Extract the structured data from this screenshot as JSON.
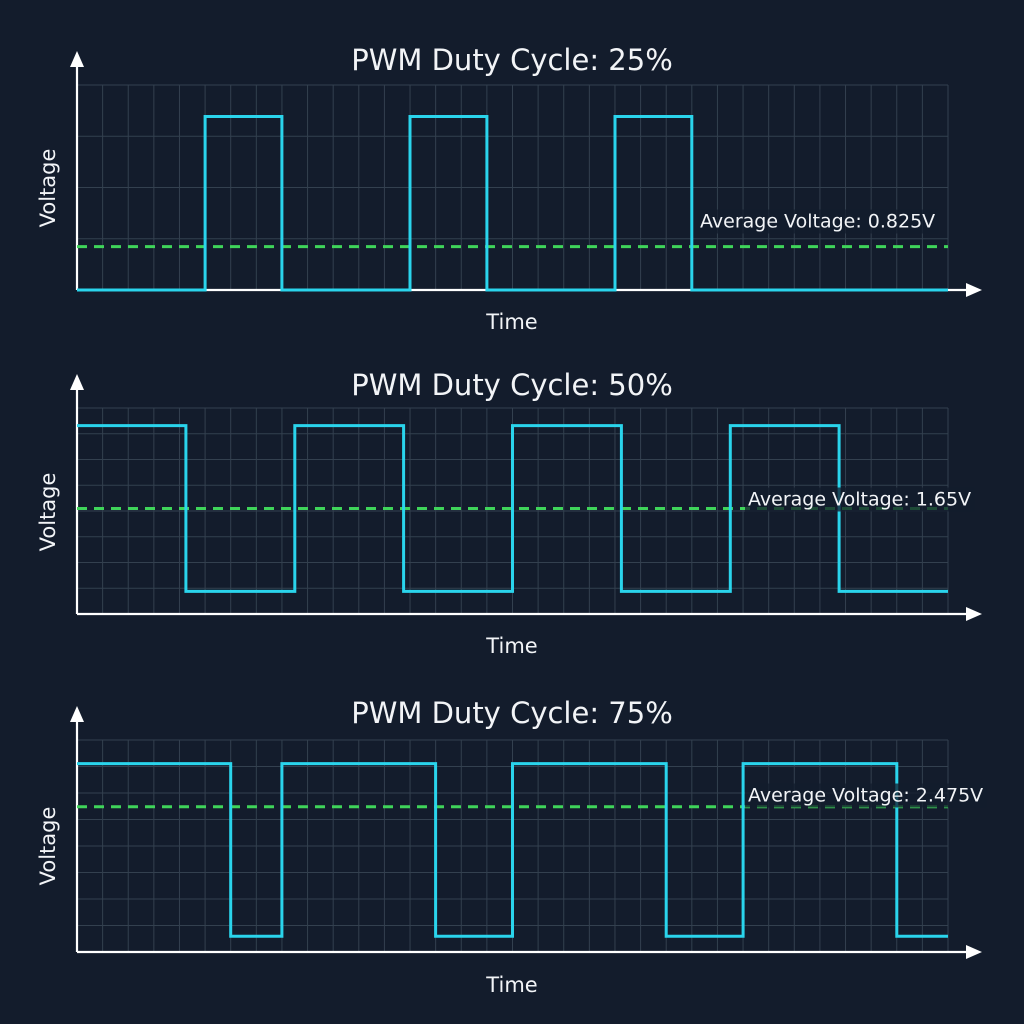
{
  "colors": {
    "background": "#131c2c",
    "grid": "#33404f",
    "axis": "#ffffff",
    "signal": "#2ad4ec",
    "average": "#3fd45a",
    "text": "#f2f4f7"
  },
  "chart_data": [
    {
      "type": "line",
      "title": "PWM Duty Cycle: 25%",
      "xlabel": "Time",
      "ylabel": "Voltage",
      "duty_cycle": 0.25,
      "period": 4,
      "xlim": [
        0,
        17
      ],
      "ylim": [
        0,
        3.9
      ],
      "grid": true,
      "series": [
        {
          "x": [
            0,
            2.5,
            2.5,
            4,
            4,
            6.5,
            6.5,
            8,
            8,
            10.5,
            10.5,
            12,
            12,
            17
          ],
          "y": [
            0,
            0,
            3.3,
            3.3,
            0,
            0,
            3.3,
            3.3,
            0,
            0,
            3.3,
            3.3,
            0,
            0
          ]
        }
      ],
      "average": {
        "value": 0.825,
        "label": "Average Voltage: 0.825V"
      }
    },
    {
      "type": "line",
      "title": "PWM Duty Cycle: 50%",
      "xlabel": "Time",
      "ylabel": "Voltage",
      "duty_cycle": 0.5,
      "period": 4,
      "xlim": [
        0,
        16
      ],
      "ylim": [
        -0.45,
        3.65
      ],
      "grid": true,
      "series": [
        {
          "x": [
            0,
            2,
            2,
            4,
            4,
            6,
            6,
            8,
            8,
            10,
            10,
            12,
            12,
            14,
            14,
            16
          ],
          "y": [
            3.3,
            3.3,
            0,
            0,
            3.3,
            3.3,
            0,
            0,
            3.3,
            3.3,
            0,
            0,
            3.3,
            3.3,
            0,
            0
          ]
        }
      ],
      "average": {
        "value": 1.65,
        "label": "Average Voltage: 1.65V"
      }
    },
    {
      "type": "line",
      "title": "PWM Duty Cycle: 75%",
      "xlabel": "Time",
      "ylabel": "Voltage",
      "duty_cycle": 0.75,
      "period": 4,
      "xlim": [
        0,
        17
      ],
      "ylim": [
        -0.3,
        3.75
      ],
      "grid": true,
      "series": [
        {
          "x": [
            0,
            3,
            3,
            4,
            4,
            7,
            7,
            8.5,
            8.5,
            11.5,
            11.5,
            13,
            13,
            16,
            16,
            17
          ],
          "y": [
            3.3,
            3.3,
            0,
            0,
            3.3,
            3.3,
            0,
            0,
            3.3,
            3.3,
            0,
            0,
            3.3,
            3.3,
            0,
            0
          ]
        }
      ],
      "average": {
        "value": 2.475,
        "label": "Average Voltage: 2.475V"
      }
    }
  ]
}
